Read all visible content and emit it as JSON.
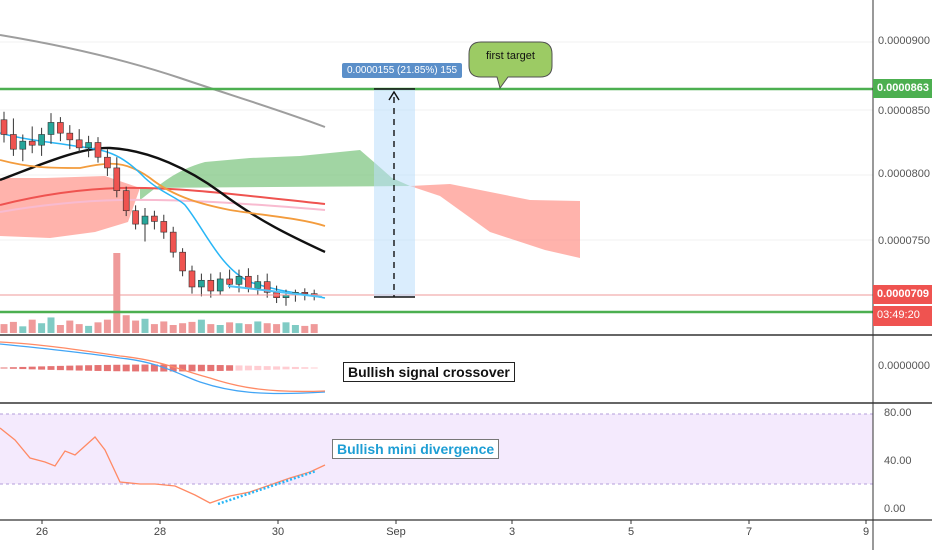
{
  "price_axis": {
    "labels": [
      "0.0000900",
      "0.0000850",
      "0.0000800",
      "0.0000750",
      "0.0000709"
    ],
    "target_tag": "0.0000863",
    "current_tag": "0.0000709",
    "countdown": "03:49:20",
    "target_color": "#4caf50",
    "current_color": "#ef5350"
  },
  "macd_axis": {
    "labels": [
      "0.0000000"
    ]
  },
  "rsi_axis": {
    "labels": [
      "80.00",
      "40.00",
      "0.00"
    ]
  },
  "x_axis": {
    "labels": [
      "26",
      "28",
      "30",
      "Sep",
      "3",
      "5",
      "7",
      "9"
    ]
  },
  "annotations": {
    "measure_label": "0.0000155 (21.85%) 155",
    "first_target": "first target",
    "bullish_signal": "Bullish signal crossover",
    "bullish_divergence": "Bullish mini divergence"
  },
  "chart_data": {
    "type": "candlestick",
    "price_levels": {
      "first_target": 8.63e-05,
      "current": 7.09e-05,
      "support": 6.99e-05
    },
    "measure": {
      "from": 7.08e-05,
      "to": 8.63e-05,
      "change": 1.55e-05,
      "percent": 21.85,
      "bars": 155
    },
    "candles": [
      {
        "o": 8.4e-05,
        "h": 8.46e-05,
        "l": 8.23e-05,
        "c": 8.29e-05
      },
      {
        "o": 8.29e-05,
        "h": 8.41e-05,
        "l": 8.13e-05,
        "c": 8.18e-05
      },
      {
        "o": 8.18e-05,
        "h": 8.29e-05,
        "l": 8.09e-05,
        "c": 8.24e-05
      },
      {
        "o": 8.24e-05,
        "h": 8.35e-05,
        "l": 8.15e-05,
        "c": 8.21e-05
      },
      {
        "o": 8.21e-05,
        "h": 8.34e-05,
        "l": 8.13e-05,
        "c": 8.29e-05
      },
      {
        "o": 8.29e-05,
        "h": 8.45e-05,
        "l": 8.22e-05,
        "c": 8.38e-05
      },
      {
        "o": 8.38e-05,
        "h": 8.42e-05,
        "l": 8.24e-05,
        "c": 8.3e-05
      },
      {
        "o": 8.3e-05,
        "h": 8.36e-05,
        "l": 8.18e-05,
        "c": 8.25e-05
      },
      {
        "o": 8.25e-05,
        "h": 8.33e-05,
        "l": 8.15e-05,
        "c": 8.19e-05
      },
      {
        "o": 8.19e-05,
        "h": 8.28e-05,
        "l": 8.12e-05,
        "c": 8.23e-05
      },
      {
        "o": 8.23e-05,
        "h": 8.27e-05,
        "l": 8.08e-05,
        "c": 8.12e-05
      },
      {
        "o": 8.12e-05,
        "h": 8.18e-05,
        "l": 7.98e-05,
        "c": 8.04e-05
      },
      {
        "o": 8.04e-05,
        "h": 8.12e-05,
        "l": 7.82e-05,
        "c": 7.87e-05
      },
      {
        "o": 7.87e-05,
        "h": 7.9e-05,
        "l": 7.68e-05,
        "c": 7.72e-05
      },
      {
        "o": 7.72e-05,
        "h": 7.76e-05,
        "l": 7.58e-05,
        "c": 7.62e-05
      },
      {
        "o": 7.62e-05,
        "h": 7.74e-05,
        "l": 7.49e-05,
        "c": 7.68e-05
      },
      {
        "o": 7.68e-05,
        "h": 7.72e-05,
        "l": 7.58e-05,
        "c": 7.64e-05
      },
      {
        "o": 7.64e-05,
        "h": 7.69e-05,
        "l": 7.51e-05,
        "c": 7.56e-05
      },
      {
        "o": 7.56e-05,
        "h": 7.6e-05,
        "l": 7.37e-05,
        "c": 7.41e-05
      },
      {
        "o": 7.41e-05,
        "h": 7.44e-05,
        "l": 7.23e-05,
        "c": 7.27e-05
      },
      {
        "o": 7.27e-05,
        "h": 7.31e-05,
        "l": 7.1e-05,
        "c": 7.15e-05
      },
      {
        "o": 7.15e-05,
        "h": 7.25e-05,
        "l": 7.08e-05,
        "c": 7.2e-05
      },
      {
        "o": 7.2e-05,
        "h": 7.25e-05,
        "l": 7.07e-05,
        "c": 7.12e-05
      },
      {
        "o": 7.12e-05,
        "h": 7.26e-05,
        "l": 7.09e-05,
        "c": 7.21e-05
      },
      {
        "o": 7.21e-05,
        "h": 7.28e-05,
        "l": 7.14e-05,
        "c": 7.17e-05
      },
      {
        "o": 7.17e-05,
        "h": 7.28e-05,
        "l": 7.11e-05,
        "c": 7.23e-05
      },
      {
        "o": 7.23e-05,
        "h": 7.29e-05,
        "l": 7.11e-05,
        "c": 7.14e-05
      },
      {
        "o": 7.14e-05,
        "h": 7.24e-05,
        "l": 7.09e-05,
        "c": 7.19e-05
      },
      {
        "o": 7.19e-05,
        "h": 7.25e-05,
        "l": 7.07e-05,
        "c": 7.11e-05
      },
      {
        "o": 7.11e-05,
        "h": 7.16e-05,
        "l": 7.03e-05,
        "c": 7.07e-05
      },
      {
        "o": 7.07e-05,
        "h": 7.13e-05,
        "l": 7.01e-05,
        "c": 7.09e-05
      },
      {
        "o": 7.09e-05,
        "h": 7.13e-05,
        "l": 7.04e-05,
        "c": 7.11e-05
      },
      {
        "o": 7.11e-05,
        "h": 7.14e-05,
        "l": 7.05e-05,
        "c": 7.1e-05
      },
      {
        "o": 7.1e-05,
        "h": 7.13e-05,
        "l": 7.05e-05,
        "c": 7.09e-05
      }
    ],
    "volume": [
      20,
      25,
      15,
      30,
      22,
      35,
      18,
      28,
      20,
      16,
      24,
      30,
      180,
      40,
      28,
      32,
      20,
      26,
      18,
      22,
      25,
      30,
      20,
      18,
      24,
      22,
      20,
      26,
      22,
      20,
      24,
      18,
      16,
      20
    ],
    "rsi": {
      "levels": [
        80,
        40,
        0
      ]
    }
  }
}
